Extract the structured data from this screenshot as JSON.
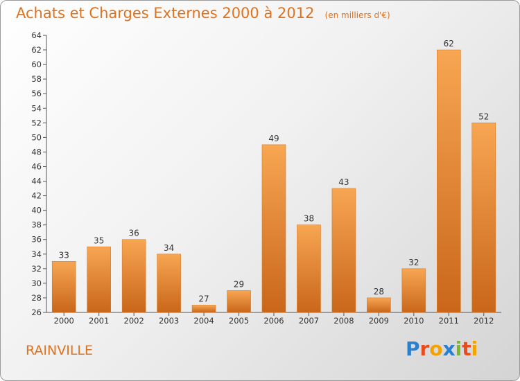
{
  "header": {
    "title": "Achats et Charges Externes 2000 à 2012",
    "unit": "(en milliers d'€)"
  },
  "footer": {
    "place": "RAINVILLE",
    "logo": "Proxiti"
  },
  "colors": {
    "accent": "#e0721c",
    "bar_light": "#f7a652",
    "bar_dark": "#c9661a",
    "logo_letters": [
      "#2a7fd0",
      "#e84c1c",
      "#f2a300",
      "#2a7fd0",
      "#7ab829",
      "#e84c1c",
      "#f2a300"
    ]
  },
  "chart_data": {
    "type": "bar",
    "title": "Achats et Charges Externes 2000 à 2012",
    "subtitle": "(en milliers d'€)",
    "categories": [
      "2000",
      "2001",
      "2002",
      "2003",
      "2004",
      "2005",
      "2006",
      "2007",
      "2008",
      "2009",
      "2010",
      "2011",
      "2012"
    ],
    "values": [
      33,
      35,
      36,
      34,
      27,
      29,
      49,
      38,
      43,
      28,
      32,
      62,
      52
    ],
    "ylim": [
      26,
      64
    ],
    "yticks": [
      26,
      28,
      30,
      32,
      34,
      36,
      38,
      40,
      42,
      44,
      46,
      48,
      50,
      52,
      54,
      56,
      58,
      60,
      62,
      64
    ],
    "xlabel": "",
    "ylabel": "",
    "grid": false,
    "legend": "none"
  }
}
